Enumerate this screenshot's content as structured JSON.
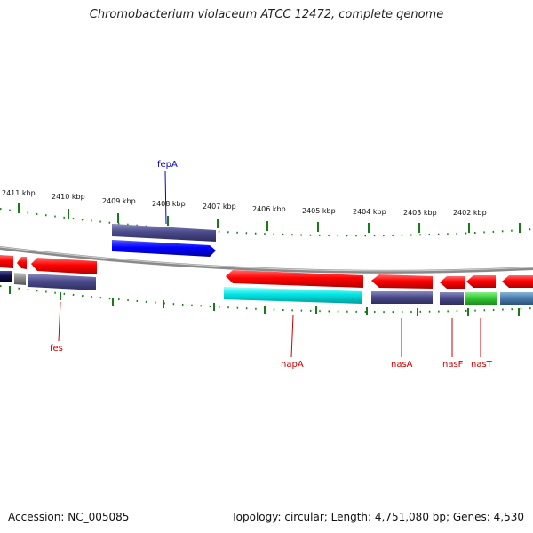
{
  "header": {
    "title": "Chromobacterium violaceum ATCC 12472, complete genome"
  },
  "footer": {
    "accession": "Accession: NC_005085",
    "summary": "Topology: circular; Length: 4,751,080 bp; Genes: 4,530"
  },
  "ruler": {
    "tick_labels": [
      "2411 kbp",
      "2410 kbp",
      "2409 kbp",
      "2408 kbp",
      "2407 kbp",
      "2406 kbp",
      "2405 kbp",
      "2404 kbp",
      "2403 kbp",
      "2402 kbp"
    ],
    "tick_color": "#1a7a1a"
  },
  "colors": {
    "backbone": "#8a8a8a",
    "cds_reverse": "#ff0000",
    "cds_forward": "#0000ff",
    "gene_feature": "#4b4b8c",
    "rna": "#00e5e5",
    "green_feature": "#33cc33",
    "steel_feature": "#4a7fb0",
    "label_forward": "#0000cc",
    "label_reverse": "#cc0000"
  },
  "genes": {
    "fepA": "fepA",
    "fes": "fes",
    "napA": "napA",
    "nasA": "nasA",
    "nasF": "nasF",
    "nasT": "nasT"
  }
}
